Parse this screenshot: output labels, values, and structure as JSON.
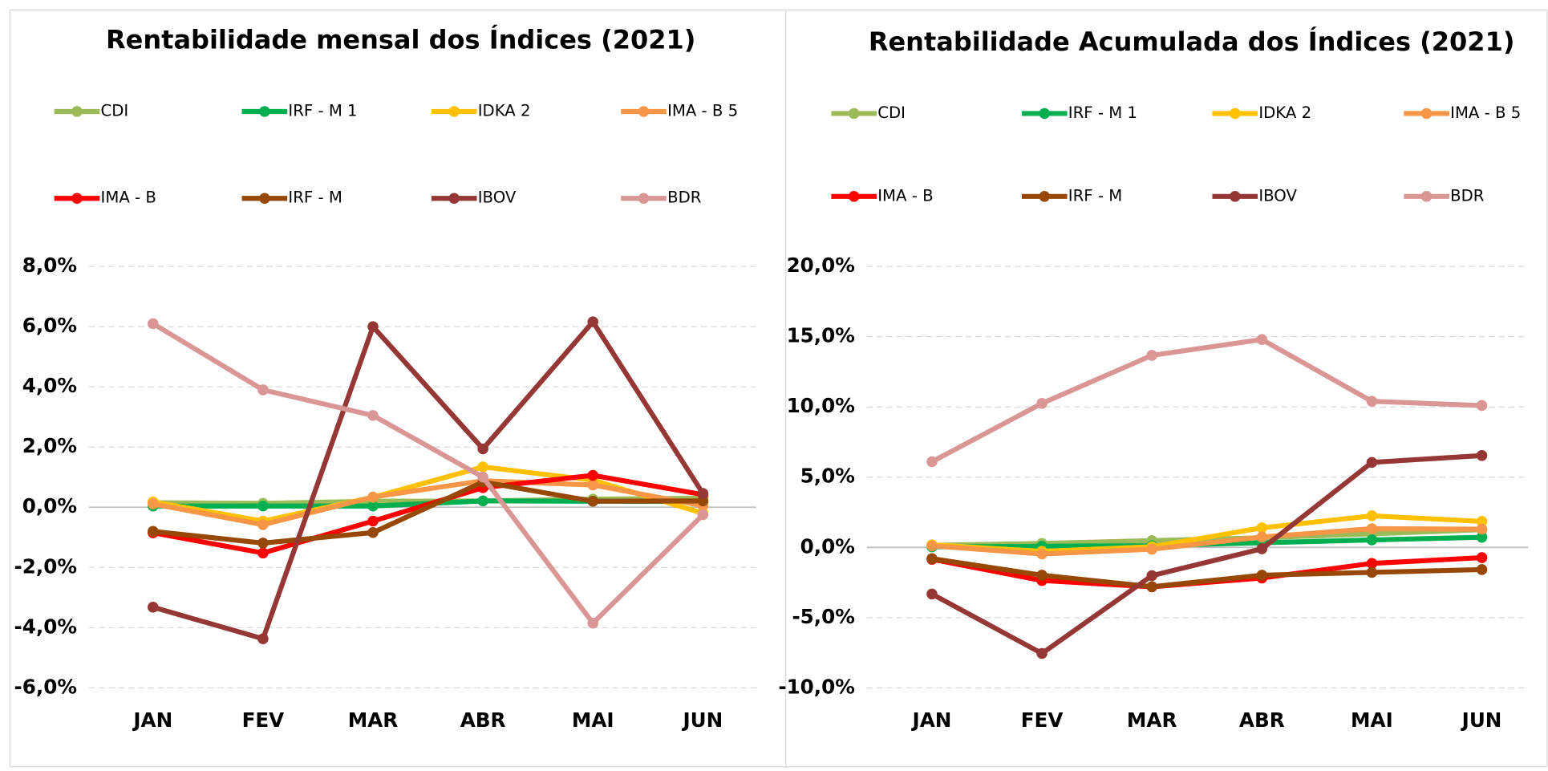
{
  "chart_data": [
    {
      "type": "line",
      "title": "Rentabilidade mensal dos Índices (2021)",
      "categories": [
        "JAN",
        "FEV",
        "MAR",
        "ABR",
        "MAI",
        "JUN"
      ],
      "ylim": [
        -6,
        8
      ],
      "yticks": [
        {
          "value": -6,
          "label": "-6,0%"
        },
        {
          "value": -4,
          "label": "-4,0%"
        },
        {
          "value": -2,
          "label": "-2,0%"
        },
        {
          "value": 0,
          "label": "0,0%"
        },
        {
          "value": 2,
          "label": "2,0%"
        },
        {
          "value": 4,
          "label": "4,0%"
        },
        {
          "value": 6,
          "label": "6,0%"
        },
        {
          "value": 8,
          "label": "8,0%"
        }
      ],
      "grid": true,
      "series": [
        {
          "name": "CDI",
          "color": "#9bbb59",
          "values": [
            0.15,
            0.13,
            0.2,
            0.21,
            0.27,
            0.3
          ]
        },
        {
          "name": "IRF - M 1",
          "color": "#00b050",
          "values": [
            0.04,
            0.04,
            0.04,
            0.21,
            0.2,
            0.19
          ]
        },
        {
          "name": "IDKA 2",
          "color": "#ffc000",
          "values": [
            0.18,
            -0.46,
            0.33,
            1.34,
            0.9,
            -0.2
          ]
        },
        {
          "name": "IMA - B 5",
          "color": "#f79646",
          "values": [
            0.11,
            -0.58,
            0.34,
            0.88,
            0.74,
            0.05
          ]
        },
        {
          "name": "IMA - B",
          "color": "#ff0000",
          "values": [
            -0.85,
            -1.52,
            -0.46,
            0.65,
            1.06,
            0.42
          ]
        },
        {
          "name": "IRF - M",
          "color": "#974706",
          "values": [
            -0.8,
            -1.19,
            -0.84,
            0.84,
            0.2,
            0.21
          ]
        },
        {
          "name": "IBOV",
          "color": "#953735",
          "values": [
            -3.32,
            -4.37,
            6.0,
            1.94,
            6.16,
            0.46
          ]
        },
        {
          "name": "BDR",
          "color": "#d99694",
          "values": [
            6.1,
            3.9,
            3.05,
            1.0,
            -3.85,
            -0.25
          ]
        }
      ]
    },
    {
      "type": "line",
      "title": "Rentabilidade Acumulada dos Índices (2021)",
      "categories": [
        "JAN",
        "FEV",
        "MAR",
        "ABR",
        "MAI",
        "JUN"
      ],
      "ylim": [
        -10,
        20
      ],
      "yticks": [
        {
          "value": -10,
          "label": "-10,0%"
        },
        {
          "value": -5,
          "label": "-5,0%"
        },
        {
          "value": 0,
          "label": "0,0%"
        },
        {
          "value": 5,
          "label": "5,0%"
        },
        {
          "value": 10,
          "label": "10,0%"
        },
        {
          "value": 15,
          "label": "15,0%"
        },
        {
          "value": 20,
          "label": "20,0%"
        }
      ],
      "grid": true,
      "series": [
        {
          "name": "CDI",
          "color": "#9bbb59",
          "values": [
            0.15,
            0.28,
            0.48,
            0.69,
            0.96,
            1.26
          ]
        },
        {
          "name": "IRF - M 1",
          "color": "#00b050",
          "values": [
            0.04,
            0.08,
            0.12,
            0.33,
            0.53,
            0.72
          ]
        },
        {
          "name": "IDKA 2",
          "color": "#ffc000",
          "values": [
            0.18,
            -0.28,
            0.05,
            1.39,
            2.25,
            1.85
          ]
        },
        {
          "name": "IMA - B 5",
          "color": "#f79646",
          "values": [
            0.11,
            -0.47,
            -0.13,
            0.74,
            1.33,
            1.3
          ]
        },
        {
          "name": "IMA - B",
          "color": "#ff0000",
          "values": [
            -0.85,
            -2.36,
            -2.81,
            -2.18,
            -1.14,
            -0.73
          ]
        },
        {
          "name": "IRF - M",
          "color": "#974706",
          "values": [
            -0.8,
            -1.98,
            -2.8,
            -1.98,
            -1.78,
            -1.58
          ]
        },
        {
          "name": "IBOV",
          "color": "#953735",
          "values": [
            -3.32,
            -7.55,
            -2.01,
            -0.1,
            6.05,
            6.54
          ]
        },
        {
          "name": "BDR",
          "color": "#d99694",
          "values": [
            6.1,
            10.25,
            13.67,
            14.8,
            10.4,
            10.1
          ]
        }
      ]
    }
  ]
}
